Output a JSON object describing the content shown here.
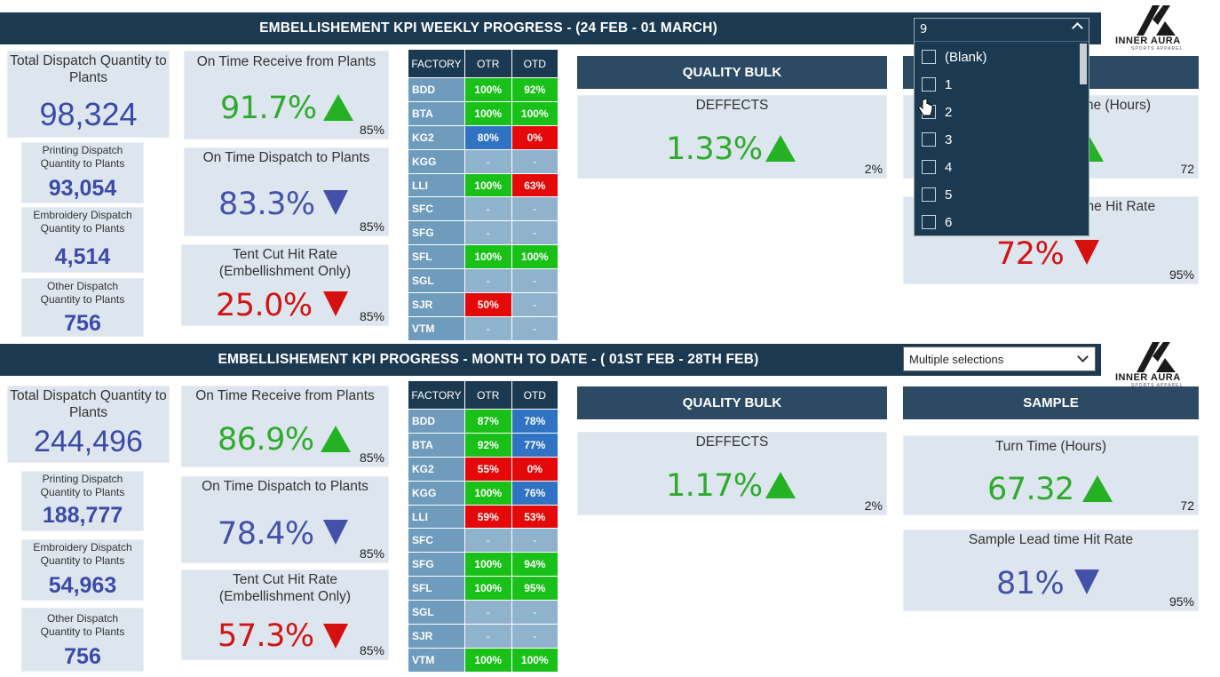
{
  "weekly": {
    "title": "EMBELLISHEMENT KPI  WEEKLY PROGRESS - (24 FEB - 01 MARCH)",
    "total_dispatch": {
      "label": "Total Dispatch Quantity to Plants",
      "value": "98,324"
    },
    "printing": {
      "label": "Printing Dispatch Quantity to Plants",
      "value": "93,054"
    },
    "embroidery": {
      "label": "Embroidery Dispatch Quantity to Plants",
      "value": "4,514"
    },
    "other": {
      "label": "Other Dispatch Quantity to Plants",
      "value": "756"
    },
    "otr": {
      "label": "On Time Receive from Plants",
      "value": "91.7%",
      "target": "85%",
      "trend": "up"
    },
    "otd": {
      "label": "On Time Dispatch to Plants",
      "value": "83.3%",
      "target": "85%",
      "trend": "down"
    },
    "tent": {
      "label": "Tent Cut Hit Rate (Embellishment Only)",
      "value": "25.0%",
      "target": "85%",
      "trend": "down"
    },
    "quality": {
      "header": "QUALITY BULK",
      "label": "DEFFECTS",
      "value": "1.33%",
      "target": "2%"
    },
    "sample": {
      "turn_label": "Turn Time (Hours)",
      "turn_target": "72",
      "hit_label": "Sample Lead time Hit Rate",
      "hit_value": "72%",
      "hit_target": "95%"
    },
    "slicer": {
      "value": "9",
      "options": [
        "(Blank)",
        "1",
        "2",
        "3",
        "4",
        "5",
        "6"
      ]
    }
  },
  "mtd": {
    "title": "EMBELLISHEMENT KPI  PROGRESS - MONTH TO DATE - ( 01ST FEB - 28TH FEB)",
    "total_dispatch": {
      "label": "Total Dispatch Quantity to Plants",
      "value": "244,496"
    },
    "printing": {
      "label": "Printing Dispatch Quantity to Plants",
      "value": "188,777"
    },
    "embroidery": {
      "label": "Embroidery Dispatch Quantity to Plants",
      "value": "54,963"
    },
    "other": {
      "label": "Other Dispatch Quantity to Plants",
      "value": "756"
    },
    "otr": {
      "label": "On Time Receive from Plants",
      "value": "86.9%",
      "target": "85%",
      "trend": "up"
    },
    "otd": {
      "label": "On Time Dispatch to Plants",
      "value": "78.4%",
      "target": "85%",
      "trend": "down"
    },
    "tent": {
      "label": "Tent Cut Hit Rate (Embellishment Only)",
      "value": "57.3%",
      "target": "85%",
      "trend": "down"
    },
    "quality": {
      "header": "QUALITY BULK",
      "label": "DEFFECTS",
      "value": "1.17%",
      "target": "2%"
    },
    "sample": {
      "header": "SAMPLE",
      "turn_label": "Turn Time (Hours)",
      "turn_value": "67.32",
      "turn_target": "72",
      "hit_label": "Sample Lead time Hit Rate",
      "hit_value": "81%",
      "hit_target": "95%"
    },
    "slicer": {
      "value": "Multiple selections"
    }
  },
  "table_headers": [
    "FACTORY",
    "OTR",
    "OTD"
  ],
  "logo": {
    "text": "INNER AURA",
    "sub": "SPORTS APPAREL"
  },
  "colors": {
    "banner": "#1b3a52",
    "green": "#2faa2f",
    "red": "#d11414",
    "blue": "#4451a8"
  }
}
